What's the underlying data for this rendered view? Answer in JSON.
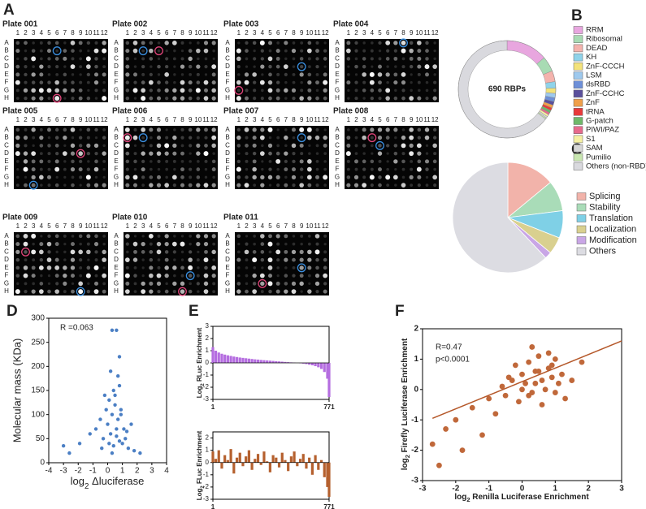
{
  "figure": {
    "panel_labels": [
      "A",
      "B",
      "C",
      "D",
      "E",
      "F"
    ]
  },
  "plates": {
    "titles": [
      "Plate 001",
      "Plate 002",
      "Plate 003",
      "Plate 004",
      "Plate 005",
      "Plate 006",
      "Plate 007",
      "Plate 008",
      "Plate 009",
      "Plate 010",
      "Plate 011"
    ],
    "columns": [
      "1",
      "2",
      "3",
      "4",
      "5",
      "6",
      "7",
      "8",
      "9",
      "10",
      "11",
      "12"
    ],
    "rows": [
      "A",
      "B",
      "C",
      "D",
      "E",
      "F",
      "G",
      "H"
    ]
  },
  "chart_data": [
    {
      "type": "donut",
      "center_label": "690 RBPs",
      "categories": [
        "RRM",
        "Ribosomal",
        "DEAD",
        "KH",
        "ZnF-CCCH",
        "LSM",
        "dsRBD",
        "ZnF-CCHC",
        "ZnF",
        "tRNA",
        "G-patch",
        "PIWI/PAZ",
        "S1",
        "SAM",
        "Pumilio",
        "Others (non-RBD)"
      ],
      "values": [
        95,
        35,
        25,
        15,
        12,
        10,
        9,
        8,
        7,
        6,
        6,
        5,
        5,
        4,
        3,
        445
      ],
      "colors": [
        "#e8a6df",
        "#a8dbb3",
        "#f4b3ad",
        "#8fd3ea",
        "#f3e27a",
        "#9ec9ee",
        "#6d8fd8",
        "#5a4f9c",
        "#f0a04a",
        "#e8393a",
        "#6fb86a",
        "#e76a8c",
        "#f5f0a3",
        "#d6d6d6",
        "#c8e6b0",
        "#d9d9de"
      ]
    },
    {
      "type": "pie",
      "categories": [
        "Splicing",
        "Stability",
        "Translation",
        "Localization",
        "Modification",
        "Others"
      ],
      "values": [
        14,
        9,
        8,
        5,
        2,
        62
      ],
      "colors": [
        "#f2b3aa",
        "#a9dcb8",
        "#7fd0e6",
        "#d9d08f",
        "#c9a6e6",
        "#dcdce2"
      ]
    },
    {
      "type": "scatter",
      "color": "#4b7fc4",
      "annotation": "R =0.063",
      "ylabel": "Molecular mass (KDa)",
      "xlabel": {
        "prefix": "log",
        "sub": "2",
        "rest": " Δluciferase"
      },
      "xlim": [
        -4,
        4
      ],
      "xticks": [
        -4,
        -3,
        -2,
        -1,
        0,
        1,
        2,
        3,
        4
      ],
      "ylim": [
        0,
        300
      ],
      "yticks": [
        0,
        50,
        100,
        150,
        200,
        250,
        300
      ],
      "x": [
        0.3,
        0.6,
        0.8,
        0.7,
        -3.0,
        -2.6,
        -1.9,
        -1.2,
        -0.8,
        -0.5,
        -0.3,
        -0.1,
        0.0,
        0.1,
        0.2,
        0.3,
        0.4,
        0.5,
        0.6,
        0.7,
        0.8,
        0.9,
        1.0,
        1.1,
        1.2,
        1.4,
        1.6,
        1.8,
        2.2,
        -0.4,
        0.2,
        0.5,
        0.9,
        0.1,
        0.6,
        0.3,
        -0.2,
        0.8,
        1.3,
        0.4
      ],
      "values": [
        275,
        275,
        220,
        180,
        35,
        20,
        40,
        60,
        70,
        90,
        50,
        110,
        80,
        130,
        60,
        100,
        150,
        120,
        70,
        90,
        160,
        110,
        40,
        70,
        50,
        30,
        80,
        25,
        20,
        30,
        190,
        140,
        100,
        40,
        55,
        20,
        140,
        45,
        65,
        35
      ]
    },
    {
      "type": "bar",
      "color": "#b56de0",
      "ylabel": {
        "prefix": "Log",
        "sub": "2",
        "rest": " RLuc Enrichment"
      },
      "xlim": [
        1,
        771
      ],
      "xticks": [
        1,
        771
      ],
      "ylim": [
        -3,
        3
      ],
      "yticks": [
        -3,
        -2,
        -1,
        0,
        1,
        2,
        3
      ],
      "x": [
        1,
        20,
        40,
        60,
        80,
        100,
        120,
        140,
        160,
        180,
        200,
        220,
        240,
        260,
        280,
        300,
        320,
        340,
        360,
        380,
        400,
        420,
        440,
        460,
        480,
        500,
        520,
        540,
        560,
        580,
        600,
        620,
        640,
        660,
        680,
        700,
        720,
        740,
        760,
        771
      ],
      "values": [
        1.3,
        1.0,
        0.85,
        0.75,
        0.68,
        0.62,
        0.57,
        0.52,
        0.48,
        0.44,
        0.41,
        0.38,
        0.35,
        0.32,
        0.29,
        0.27,
        0.24,
        0.22,
        0.2,
        0.18,
        0.16,
        0.14,
        0.12,
        0.1,
        0.08,
        0.06,
        0.04,
        0.02,
        0,
        -0.03,
        -0.06,
        -0.1,
        -0.15,
        -0.2,
        -0.27,
        -0.36,
        -0.5,
        -0.75,
        -1.3,
        -2.8
      ]
    },
    {
      "type": "bar",
      "color": "#b5602e",
      "ylabel": {
        "prefix": "Log",
        "sub": "2",
        "rest": " FLuc Enrichment"
      },
      "xlim": [
        1,
        771
      ],
      "xticks": [
        1,
        771
      ],
      "ylim": [
        -3,
        2.5
      ],
      "yticks": [
        -3,
        -2,
        -1,
        0,
        1,
        2
      ],
      "x": [
        1,
        20,
        40,
        60,
        80,
        100,
        120,
        140,
        160,
        180,
        200,
        220,
        240,
        260,
        280,
        300,
        320,
        340,
        360,
        380,
        400,
        420,
        440,
        460,
        480,
        500,
        520,
        540,
        560,
        580,
        600,
        620,
        640,
        660,
        680,
        700,
        720,
        740,
        760,
        771
      ],
      "values": [
        0.9,
        0.3,
        1.0,
        -0.5,
        0.6,
        0.2,
        1.1,
        -0.9,
        0.4,
        0.8,
        -0.3,
        0.5,
        1.0,
        -0.6,
        0.3,
        0.7,
        -0.2,
        0.9,
        0.1,
        -0.8,
        0.6,
        0.4,
        -0.4,
        0.8,
        0.2,
        -0.7,
        0.5,
        0.9,
        -0.3,
        0.3,
        0.7,
        -0.5,
        0.4,
        -1.0,
        0.6,
        -0.6,
        0.2,
        -1.2,
        -2.0,
        -2.8
      ]
    },
    {
      "type": "scatter",
      "color": "#c0683a",
      "annotations": [
        "R=0.47",
        "p<0.0001"
      ],
      "xlabel": {
        "prefix": "log",
        "sub": "2",
        "rest": " Renilla Luciferase Enrichment"
      },
      "ylabel": {
        "prefix": "log",
        "sub": "2",
        "rest": " Firefly Luciferase Enrichment"
      },
      "xlim": [
        -3,
        3
      ],
      "xticks": [
        -3,
        -2,
        -1,
        0,
        1,
        2,
        3
      ],
      "ylim": [
        -3,
        2
      ],
      "yticks": [
        -3,
        -2,
        -1,
        0,
        1,
        2
      ],
      "fit": {
        "x": [
          -2.7,
          3
        ],
        "values": [
          -0.95,
          1.6
        ],
        "color": "#b5582a"
      },
      "x": [
        -2.7,
        -2.5,
        -2.3,
        -2.0,
        -1.8,
        -1.5,
        -1.2,
        -1.0,
        -0.8,
        -0.6,
        -0.5,
        -0.3,
        -0.2,
        -0.1,
        0.0,
        0.1,
        0.2,
        0.3,
        0.4,
        0.5,
        0.6,
        0.7,
        0.8,
        0.9,
        1.0,
        1.1,
        1.2,
        1.3,
        1.5,
        1.8,
        0.0,
        0.3,
        0.6,
        0.9,
        0.2,
        0.5,
        0.8,
        -0.4,
        1.0,
        0.4
      ],
      "values": [
        -1.8,
        -2.5,
        -1.3,
        -1.0,
        -2.0,
        -0.6,
        -1.5,
        -0.3,
        -0.8,
        0.1,
        -0.2,
        0.3,
        0.8,
        -0.4,
        0.5,
        0.2,
        0.9,
        -0.1,
        0.6,
        1.1,
        0.3,
        0.0,
        0.7,
        0.4,
        1.0,
        0.2,
        0.5,
        -0.3,
        0.3,
        0.9,
        0.0,
        1.4,
        -0.5,
        0.8,
        -0.2,
        0.6,
        1.2,
        0.4,
        -0.1,
        0.2
      ]
    }
  ]
}
